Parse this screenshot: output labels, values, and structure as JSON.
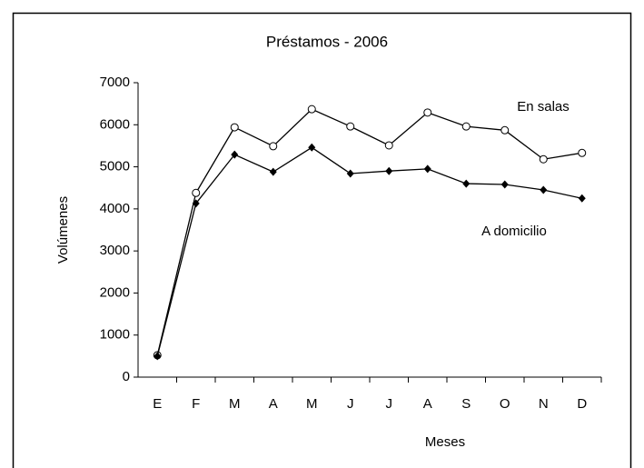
{
  "chart_data": {
    "type": "line",
    "title": "Préstamos - 2006",
    "xlabel": "Meses",
    "ylabel": "Volúmenes",
    "categories": [
      "E",
      "F",
      "M",
      "A",
      "M",
      "J",
      "J",
      "A",
      "S",
      "O",
      "N",
      "D"
    ],
    "series": [
      {
        "name": "En salas",
        "color": "#000000",
        "marker": "open-circle",
        "values": [
          520,
          4380,
          5940,
          5490,
          6370,
          5960,
          5510,
          6290,
          5960,
          5870,
          5180,
          5330
        ]
      },
      {
        "name": "A domicilio",
        "color": "#000000",
        "marker": "filled-diamond",
        "values": [
          500,
          4130,
          5290,
          4880,
          5460,
          4840,
          4900,
          4950,
          4600,
          4580,
          4450,
          4250
        ]
      }
    ],
    "ylim": [
      0,
      7000
    ],
    "yticks": [
      0,
      1000,
      2000,
      3000,
      4000,
      5000,
      6000,
      7000
    ],
    "grid": false
  }
}
